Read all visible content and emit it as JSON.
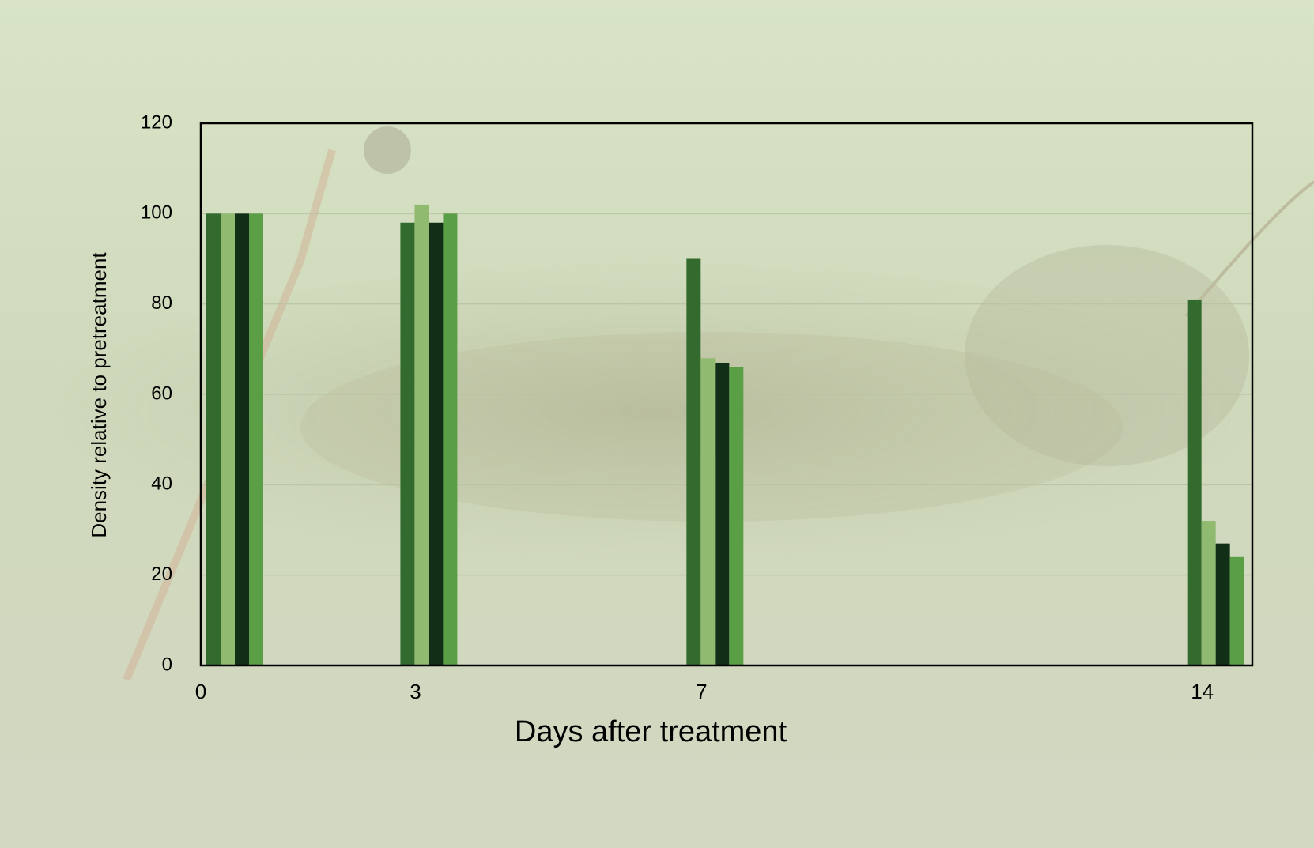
{
  "chart_data": {
    "type": "bar",
    "x_label": "Days after treatment",
    "y_label": "Density relative to pretreatment",
    "x": [
      0,
      3,
      7,
      14
    ],
    "xlim": [
      0,
      14.7
    ],
    "xticks": [
      0,
      3,
      7,
      14
    ],
    "ylim": [
      0,
      120
    ],
    "yticks": [
      0,
      20,
      40,
      60,
      80,
      100,
      120
    ],
    "grid": true,
    "series": [
      {
        "color": "#336b2e",
        "values": [
          100,
          98,
          90,
          81
        ]
      },
      {
        "color": "#8fba70",
        "values": [
          100,
          102,
          68,
          32
        ]
      },
      {
        "color": "#112e17",
        "values": [
          100,
          98,
          67,
          27
        ]
      },
      {
        "color": "#5a9e45",
        "values": [
          100,
          100,
          66,
          24
        ]
      }
    ]
  }
}
